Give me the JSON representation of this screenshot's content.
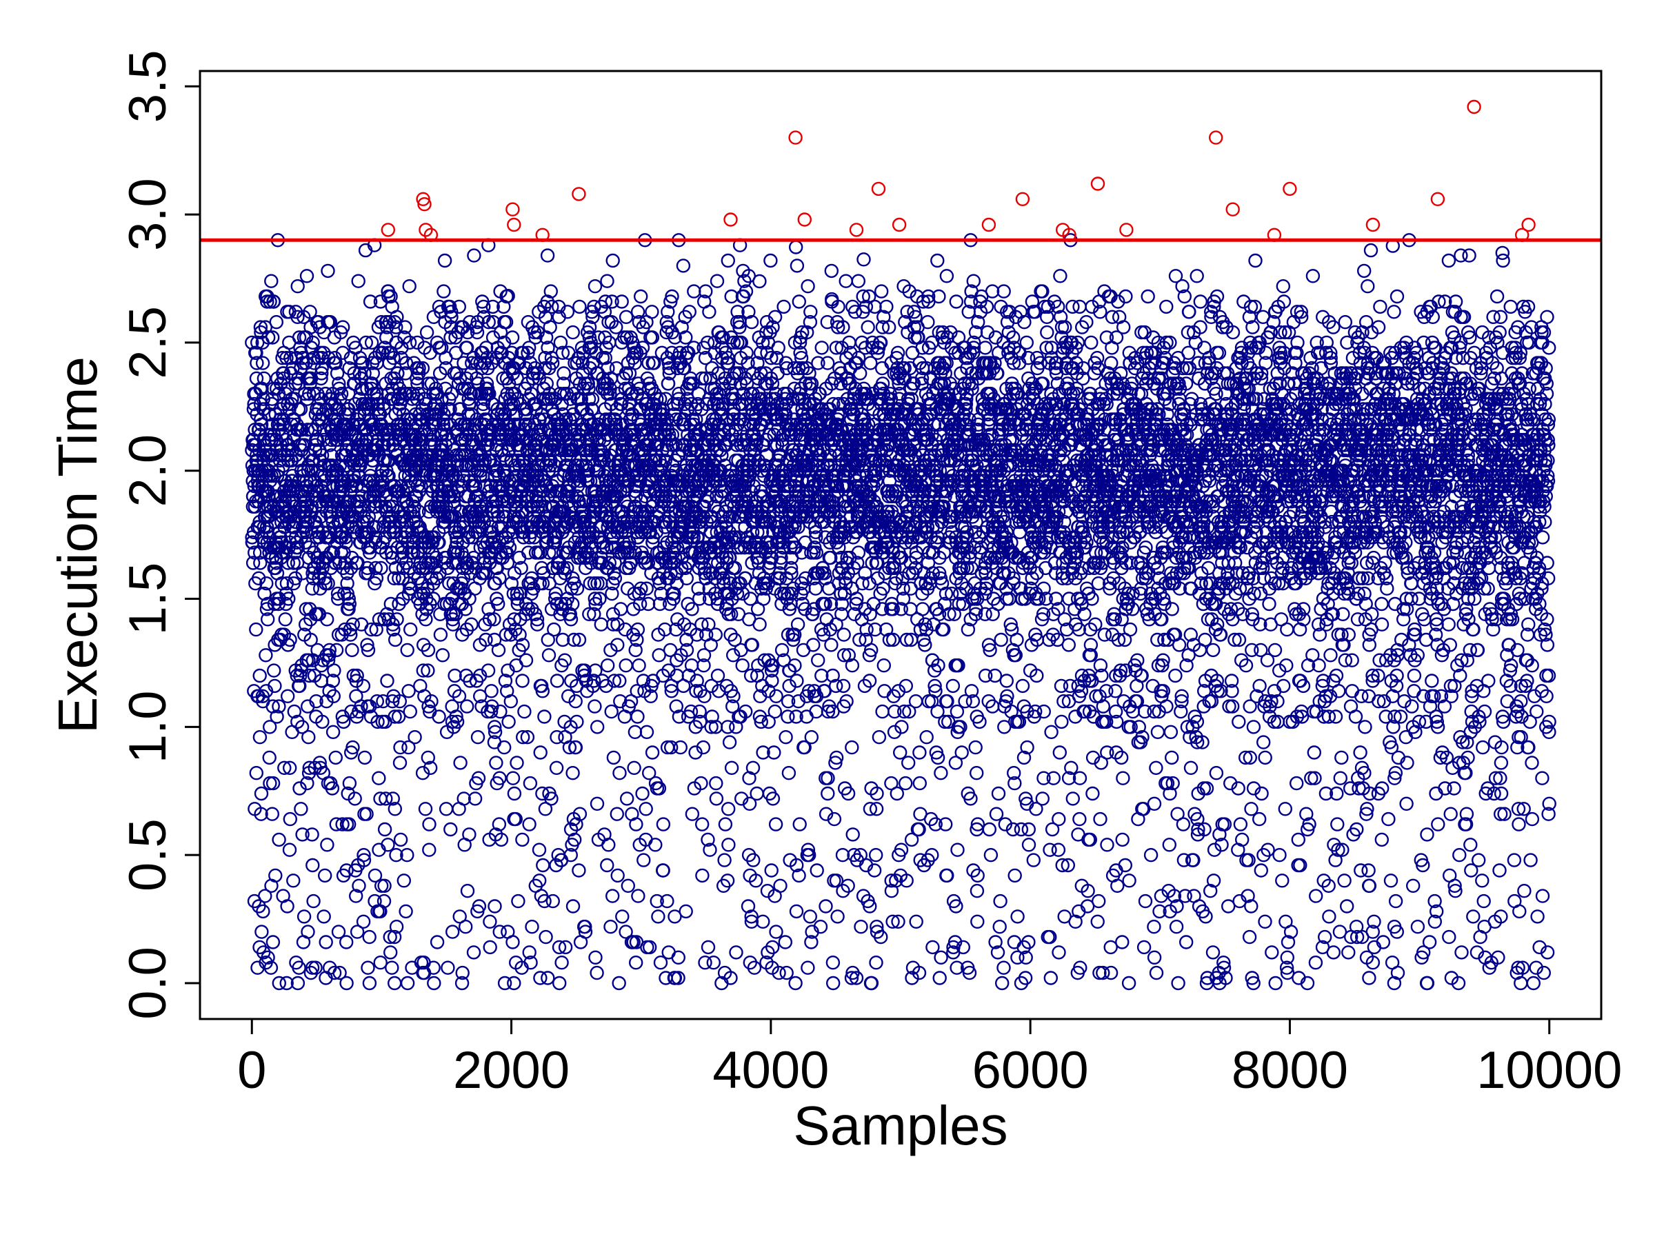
{
  "chart_data": {
    "type": "scatter",
    "title": "",
    "xlabel": "Samples",
    "ylabel": "Execution Time",
    "xlim": [
      -400,
      10400
    ],
    "ylim": [
      -0.14,
      3.56
    ],
    "x_ticks": [
      0,
      2000,
      4000,
      6000,
      8000,
      10000
    ],
    "x_tick_labels": [
      "0",
      "2000",
      "4000",
      "6000",
      "8000",
      "10000"
    ],
    "y_ticks": [
      0.0,
      0.5,
      1.0,
      1.5,
      2.0,
      2.5,
      3.0,
      3.5
    ],
    "y_tick_labels": [
      "0.0",
      "0.5",
      "1.0",
      "1.5",
      "2.0",
      "2.5",
      "3.0",
      "3.5"
    ],
    "grid": false,
    "threshold": {
      "y": 2.9,
      "color": "#e60000"
    },
    "series": [
      {
        "marker": "open-circle",
        "color": "#00008b",
        "note_count": 10000,
        "x_range": [
          0,
          10000
        ],
        "points_sample": [
          [
            10,
            1.9
          ],
          [
            200,
            2.9
          ],
          [
            210,
            0.0
          ],
          [
            730,
            0.0
          ],
          [
            1100,
            0.0
          ],
          [
            1620,
            0.0
          ],
          [
            1950,
            0.0
          ],
          [
            2020,
            0.0
          ],
          [
            2370,
            0.0
          ],
          [
            2830,
            0.0
          ],
          [
            3620,
            0.0
          ],
          [
            4190,
            0.0
          ],
          [
            4480,
            0.0
          ],
          [
            5930,
            0.0
          ],
          [
            6760,
            0.0
          ],
          [
            7360,
            0.0
          ],
          [
            7890,
            0.0
          ],
          [
            9060,
            0.0
          ],
          [
            9300,
            0.0
          ],
          [
            9780,
            0.0
          ],
          [
            3030,
            2.9
          ],
          [
            3290,
            2.9
          ],
          [
            5540,
            2.9
          ],
          [
            6310,
            2.9
          ],
          [
            8920,
            2.9
          ],
          [
            60,
            0.14
          ],
          [
            90,
            0.12
          ],
          [
            570,
            0.02
          ],
          [
            3690,
            0.02
          ],
          [
            4660,
            0.02
          ],
          [
            8640,
            0.08
          ],
          [
            9030,
            0.12
          ]
        ]
      },
      {
        "marker": "open-circle",
        "color": "#e60000",
        "points": [
          [
            1050,
            2.94
          ],
          [
            1320,
            3.06
          ],
          [
            1330,
            3.04
          ],
          [
            1340,
            2.94
          ],
          [
            1380,
            2.92
          ],
          [
            2010,
            3.02
          ],
          [
            2020,
            2.96
          ],
          [
            2240,
            2.92
          ],
          [
            2520,
            3.08
          ],
          [
            3690,
            2.98
          ],
          [
            4190,
            3.3
          ],
          [
            4260,
            2.98
          ],
          [
            4660,
            2.94
          ],
          [
            4830,
            3.1
          ],
          [
            4990,
            2.96
          ],
          [
            5680,
            2.96
          ],
          [
            5940,
            3.06
          ],
          [
            6250,
            2.94
          ],
          [
            6300,
            2.92
          ],
          [
            6520,
            3.12
          ],
          [
            6740,
            2.94
          ],
          [
            7430,
            3.3
          ],
          [
            7560,
            3.02
          ],
          [
            7880,
            2.92
          ],
          [
            8000,
            3.1
          ],
          [
            8640,
            2.96
          ],
          [
            9140,
            3.06
          ],
          [
            9420,
            3.42
          ],
          [
            9790,
            2.92
          ],
          [
            9840,
            2.96
          ]
        ]
      }
    ]
  }
}
